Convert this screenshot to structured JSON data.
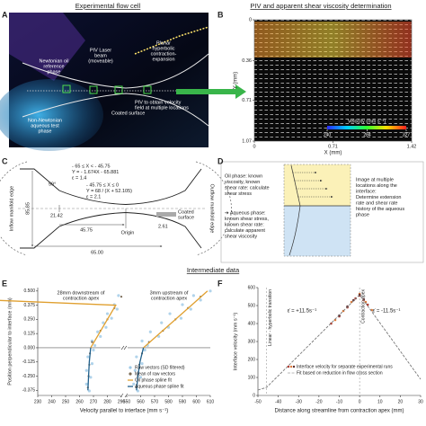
{
  "headers": {
    "flow_cell": "Experimental flow cell",
    "piv": "PIV and apparent shear viscosity determination",
    "intermediate": "Intermediate data"
  },
  "panel_labels": [
    "A",
    "B",
    "C",
    "D",
    "E",
    "F"
  ],
  "flow_cell": {
    "oil_phase": [
      "Newtonian oil",
      "reference",
      "phase"
    ],
    "laser": [
      "PIV Laser",
      "beam",
      "(moveable)"
    ],
    "contraction": [
      "Planar",
      "hyperbolic",
      "contraction-",
      "expansion"
    ],
    "piv": [
      "PIV to obtain velocity",
      "field at multiple locations"
    ],
    "coated": "Coated surface",
    "aqueous": [
      "Non-Newtonian",
      "aqueous test",
      "phase"
    ]
  },
  "piv_field": {
    "xlabel": "X (mm)",
    "ylabel": "Y (mm)",
    "xlim": [
      0,
      1.42
    ],
    "xticks": [
      0,
      0.71,
      1.42
    ],
    "ylim": [
      0,
      1.07
    ],
    "yticks": [
      0,
      0.36,
      0.71,
      1.07
    ],
    "colorbar": {
      "title": "Velocity (mm s⁻¹)",
      "lim": [
        240,
        327
      ],
      "ticks": [
        240,
        284,
        327
      ]
    }
  },
  "geometry": {
    "inlet": [
      "- 65 ≤ X < - 45.75",
      "Y = - 1.674X - 65.881",
      "ε = 1.4"
    ],
    "hyperbolic": [
      "- 45.75 ≤ X ≤ 0",
      "Y = 68 / (X + 52.105)",
      "ε = 2.1"
    ],
    "inflow": "Inflow manifold edge",
    "outflow": "Outflow manifold edge",
    "dims": [
      85.85,
      "59°",
      21.42,
      45.75,
      2.61,
      "65.00"
    ],
    "origin": "Origin",
    "coated": [
      "Coated",
      "surface"
    ]
  },
  "method": {
    "oil": [
      "Oil phase: known",
      "viscosity, known",
      "shear rate: calculate",
      "shear stress"
    ],
    "aqueous": [
      "➔ Aqueous phase:",
      "known shear stress,",
      "known shear rate:",
      "calculate apparent",
      "shear viscosity"
    ],
    "imaging": [
      "Image at multiple",
      "locations along the",
      "interface:",
      "Determine extension",
      "rate and shear rate",
      "history of the aqueous",
      "phase"
    ]
  },
  "chart_data": [
    {
      "type": "line",
      "xlabel": "Velocity parallel to interface (mm s⁻¹)",
      "ylabel": "Position perpendicular to interface (mm)",
      "xlim": [
        [
          230,
          290
        ],
        [
          550,
          610
        ]
      ],
      "xticks": [
        [
          230,
          240,
          250,
          260,
          270,
          280,
          290
        ],
        [
          550,
          560,
          570,
          580,
          590,
          600,
          610
        ]
      ],
      "ylim": [
        -0.42,
        0.53
      ],
      "yticks": [
        {
          "value": 0.5,
          "label": "0.500"
        },
        {
          "value": 0.375,
          "label": "0.375"
        },
        {
          "value": 0.25,
          "label": "0.250"
        },
        {
          "value": 0.125,
          "label": "0.125"
        },
        {
          "value": 0,
          "label": "0.000"
        },
        {
          "value": -0.125,
          "label": "-0.125"
        },
        {
          "value": -0.25,
          "label": "-0.250"
        },
        {
          "value": -0.375,
          "label": "-0.375"
        }
      ],
      "annotations": [
        [
          "28mm downstream of",
          "contraction apex"
        ],
        [
          "3mm upstream of",
          "contraction apex"
        ]
      ],
      "series": [
        {
          "name": "Raw vectors (SD filtered)",
          "color": "#9cc8e6",
          "mode": "markers",
          "segments": [
            {
              "y": [
                0.02,
                0.06,
                0.1,
                0.14,
                0.18,
                0.22,
                0.26,
                0.3,
                0.34,
                0.38,
                0.42,
                0.46,
                0.5
              ],
              "values": [
                271,
                269,
                275,
                273,
                279,
                277,
                283,
                280,
                287,
                285,
                291,
                288,
                294
              ]
            },
            {
              "y": [
                -0.02,
                -0.08,
                -0.14,
                -0.2,
                -0.26,
                -0.32,
                -0.38
              ],
              "values": [
                270,
                266,
                269,
                265,
                268,
                265,
                267
              ]
            },
            {
              "y": [
                0.02,
                0.06,
                0.1,
                0.14,
                0.18,
                0.22,
                0.26,
                0.3,
                0.34,
                0.38,
                0.42,
                0.46,
                0.5
              ],
              "values": [
                565,
                561,
                573,
                567,
                580,
                575,
                589,
                581,
                596,
                590,
                603,
                598,
                610
              ]
            },
            {
              "y": [
                -0.02,
                -0.08,
                -0.14,
                -0.2,
                -0.26,
                -0.32,
                -0.38
              ],
              "values": [
                563,
                557,
                561,
                556,
                560,
                555,
                558
              ]
            }
          ]
        },
        {
          "name": "Mean of raw vectors",
          "color": "#7a6a55",
          "mode": "markers",
          "segments": [
            {
              "y": [
                0.05,
                0.15,
                0.25,
                0.35,
                0.45
              ],
              "values": [
                269,
                275,
                280,
                285,
                290
              ]
            },
            {
              "y": [
                -0.05,
                -0.15,
                -0.25,
                -0.35
              ],
              "values": [
                267.5,
                267,
                266.5,
                266
              ]
            },
            {
              "y": [
                0.05,
                0.15,
                0.25,
                0.35,
                0.45
              ],
              "values": [
                566,
                576,
                585,
                594,
                603
              ]
            },
            {
              "y": [
                -0.05,
                -0.15,
                -0.25,
                -0.35
              ],
              "values": [
                561,
                559,
                558,
                557
              ]
            }
          ]
        },
        {
          "name": "Oil phase spline fit",
          "color": "#e0a030",
          "mode": "lines",
          "segments": [
            {
              "y": [
                0,
                0.125,
                0.25,
                0.375,
                0.5
              ],
              "values": [
                268,
                274,
                280,
                286,
                292
              ]
            },
            {
              "y": [
                0,
                0.125,
                0.25,
                0.375,
                0.5
              ],
              "values": [
                562,
                573.5,
                585,
                596.5,
                608
              ]
            }
          ]
        },
        {
          "name": "Aqueous phase spline fit",
          "color": "#1f5f8b",
          "mode": "lines",
          "segments": [
            {
              "y": [
                0,
                -0.125,
                -0.25,
                -0.375
              ],
              "values": [
                268,
                267,
                266.5,
                266
              ]
            },
            {
              "y": [
                0,
                -0.125,
                -0.25,
                -0.375
              ],
              "values": [
                562,
                559.5,
                558,
                557
              ]
            }
          ]
        }
      ]
    },
    {
      "type": "line",
      "xlabel": "Distance along streamline from contraction apex (mm)",
      "ylabel": "Interface velocity (mm s⁻¹)",
      "xlim": [
        -50,
        30
      ],
      "xticks": [
        -50,
        -40,
        -30,
        -20,
        -10,
        0,
        10,
        20,
        30
      ],
      "ylim": [
        0,
        600
      ],
      "yticks": [
        0,
        100,
        200,
        300,
        400,
        500,
        600
      ],
      "annotations": [
        "ε̇ = +11.5s⁻¹",
        "ε̇ = -11.5s⁻¹"
      ],
      "reference_lines": [
        {
          "x": -45.75,
          "label": "Linear - hyperbolic transition"
        },
        {
          "x": 0,
          "label": "Contraction apex"
        }
      ],
      "series": [
        {
          "name": "Interface velocity for separate experimental runs",
          "mode": "markers",
          "runs": [
            {
              "color": "#b03a2e",
              "x": [
                -14,
                -10,
                -6,
                -2,
                0,
                2,
                4
              ],
              "values": [
                400,
                440,
                490,
                540,
                555,
                530,
                505
              ]
            },
            {
              "color": "#e07b39",
              "x": [
                -12,
                -8,
                -4,
                0,
                3,
                6
              ],
              "values": [
                420,
                470,
                520,
                565,
                520,
                475
              ]
            },
            {
              "color": "#5b2c2c",
              "x": [
                -10,
                -6,
                -3,
                0,
                2
              ],
              "values": [
                445,
                495,
                530,
                560,
                535
              ]
            }
          ]
        },
        {
          "name": "Fit based on reduction in flow cross section",
          "color": "#777777",
          "mode": "lines",
          "x": [
            -50,
            -45.75,
            -30,
            -15,
            0,
            15,
            30
          ],
          "values": [
            30,
            45,
            222,
            391,
            560,
            325,
            90
          ]
        }
      ]
    }
  ]
}
